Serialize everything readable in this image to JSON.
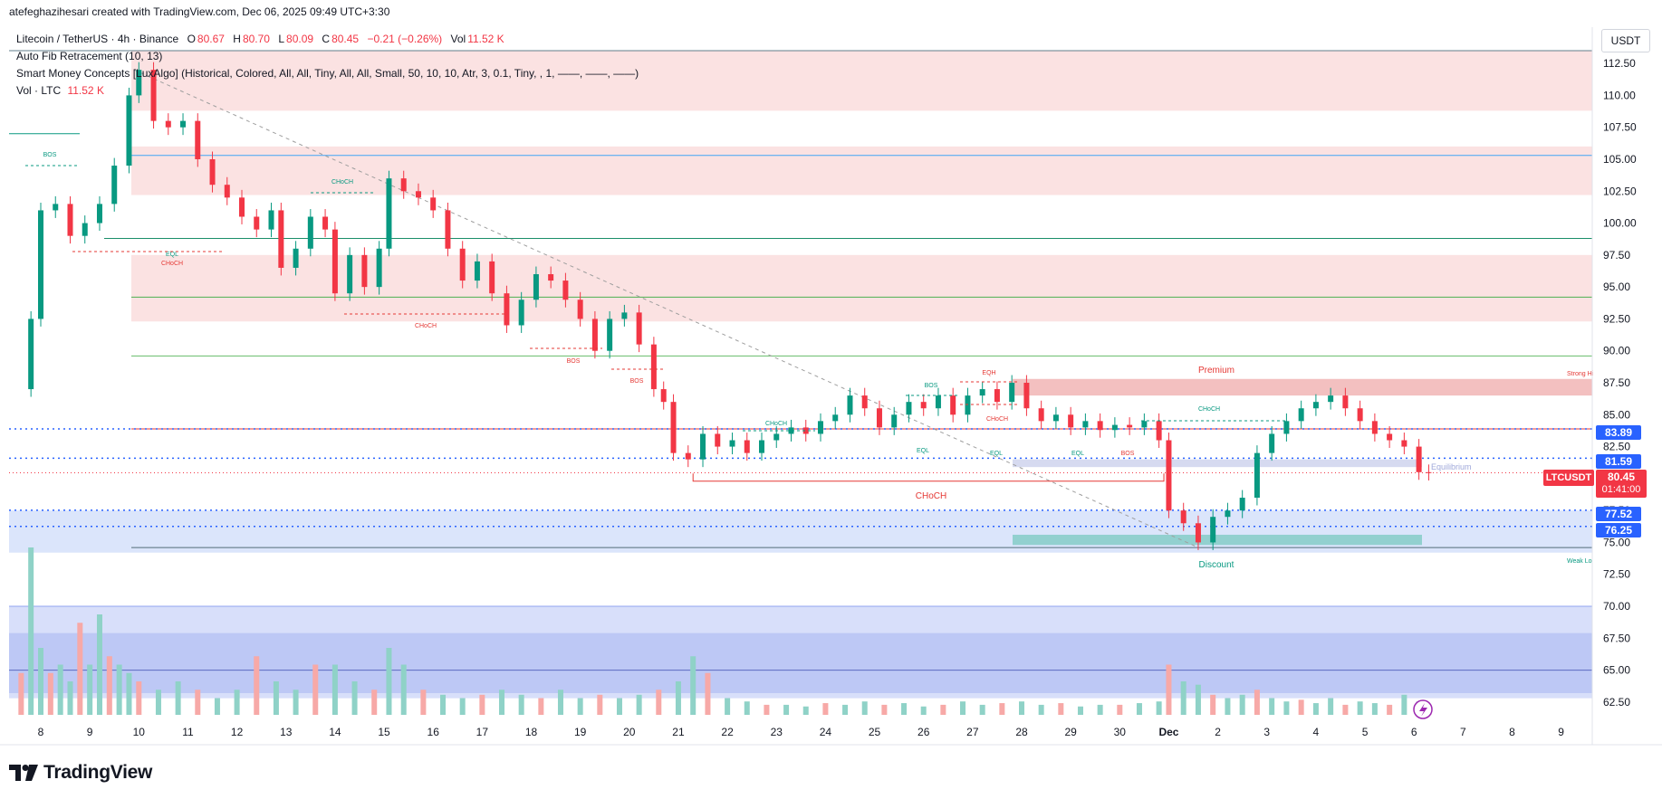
{
  "header": {
    "created_by": "atefeghazihesari created with TradingView.com, Dec 06, 2025 09:49 UTC+3:30"
  },
  "legend": {
    "symbol": "Litecoin / TetherUS · 4h · Binance",
    "o_label": "O",
    "o_value": "80.67",
    "h_label": "H",
    "h_value": "80.70",
    "l_label": "L",
    "l_value": "80.09",
    "c_label": "C",
    "c_value": "80.45",
    "change": "−0.21 (−0.26%)",
    "vol_label": "Vol",
    "vol_value": "11.52 K",
    "indicator_fib": "Auto Fib Retracement (10, 13)",
    "indicator_smc": "Smart Money Concepts [LuxAlgo] (Historical, Colored, All, All, Tiny, All, All, Small, 50, 10, 10, Atr, 3, 0.1, Tiny, , 1, ——, ——, ——)",
    "vol_line_label": "Vol · LTC",
    "vol_line_value": "11.52 K"
  },
  "currency": "USDT",
  "price_tags": {
    "current_symbol": "LTCUSDT",
    "current_price": "80.45",
    "countdown": "01:41:00",
    "tag_83": "83.89",
    "tag_81": "81.59",
    "tag_77": "77.52",
    "tag_76": "76.25"
  },
  "annotations": {
    "premium": "Premium",
    "discount": "Discount",
    "equilibrium": "Equilibrium",
    "strong_high": "Strong Hi",
    "weak_low": "Weak Lo",
    "bos": "BOS",
    "choch": "CHoCH",
    "eqh": "EQH",
    "eql": "EQL"
  },
  "branding": {
    "name": "TradingView"
  },
  "colors": {
    "up": "#089981",
    "down": "#f23645",
    "vol_up": "#8fd2c7",
    "vol_down": "#f7a9a7",
    "premium_zone": "#fbe0e0",
    "discount_zone": "#dbe5fb",
    "fib_blue": "#2962ff"
  },
  "chart_data": {
    "type": "candlestick",
    "timeframe": "4h",
    "y_axis": {
      "ticks": [
        "112.50",
        "110.00",
        "107.50",
        "105.00",
        "102.50",
        "100.00",
        "97.50",
        "95.00",
        "92.50",
        "90.00",
        "87.50",
        "85.00",
        "82.50",
        "80.00",
        "77.50",
        "75.00",
        "72.50",
        "70.00",
        "67.50",
        "65.00",
        "62.50"
      ],
      "range": [
        61.5,
        113.5
      ]
    },
    "x_axis": {
      "ticks": [
        "8",
        "9",
        "10",
        "11",
        "12",
        "13",
        "14",
        "15",
        "16",
        "17",
        "18",
        "19",
        "20",
        "21",
        "22",
        "23",
        "24",
        "25",
        "26",
        "27",
        "28",
        "29",
        "30",
        "Dec",
        "2",
        "3",
        "4",
        "5",
        "6",
        "7",
        "8",
        "9"
      ]
    },
    "price_path": [
      [
        7.6,
        87.0
      ],
      [
        7.8,
        92.5
      ],
      [
        8.0,
        101.0
      ],
      [
        8.3,
        101.5
      ],
      [
        8.6,
        99.0
      ],
      [
        8.9,
        100.0
      ],
      [
        9.2,
        101.5
      ],
      [
        9.5,
        104.5
      ],
      [
        9.8,
        110.0
      ],
      [
        10.0,
        112.0
      ],
      [
        10.3,
        108.0
      ],
      [
        10.6,
        107.5
      ],
      [
        10.9,
        108.0
      ],
      [
        11.2,
        105.0
      ],
      [
        11.5,
        103.0
      ],
      [
        11.8,
        102.0
      ],
      [
        12.1,
        100.5
      ],
      [
        12.4,
        99.5
      ],
      [
        12.7,
        101.0
      ],
      [
        12.9,
        96.5
      ],
      [
        13.2,
        98.0
      ],
      [
        13.5,
        100.5
      ],
      [
        13.8,
        99.5
      ],
      [
        14.0,
        94.5
      ],
      [
        14.3,
        97.5
      ],
      [
        14.6,
        95.0
      ],
      [
        14.9,
        98.0
      ],
      [
        15.1,
        103.5
      ],
      [
        15.4,
        102.5
      ],
      [
        15.7,
        102.0
      ],
      [
        16.0,
        101.0
      ],
      [
        16.3,
        98.0
      ],
      [
        16.6,
        95.5
      ],
      [
        16.9,
        97.0
      ],
      [
        17.2,
        94.5
      ],
      [
        17.5,
        92.0
      ],
      [
        17.8,
        94.0
      ],
      [
        18.1,
        96.0
      ],
      [
        18.4,
        95.5
      ],
      [
        18.7,
        94.0
      ],
      [
        19.0,
        92.5
      ],
      [
        19.3,
        90.0
      ],
      [
        19.6,
        92.5
      ],
      [
        19.9,
        93.0
      ],
      [
        20.2,
        90.5
      ],
      [
        20.5,
        87.0
      ],
      [
        20.7,
        86.0
      ],
      [
        20.9,
        82.0
      ],
      [
        21.2,
        81.5
      ],
      [
        21.5,
        83.5
      ],
      [
        21.8,
        82.5
      ],
      [
        22.1,
        83.0
      ],
      [
        22.4,
        82.0
      ],
      [
        22.7,
        83.0
      ],
      [
        23.0,
        83.5
      ],
      [
        23.3,
        84.0
      ],
      [
        23.6,
        83.5
      ],
      [
        23.9,
        84.5
      ],
      [
        24.2,
        85.0
      ],
      [
        24.5,
        86.5
      ],
      [
        24.8,
        85.5
      ],
      [
        25.1,
        84.0
      ],
      [
        25.4,
        85.0
      ],
      [
        25.7,
        86.0
      ],
      [
        26.0,
        85.5
      ],
      [
        26.3,
        86.5
      ],
      [
        26.6,
        85.0
      ],
      [
        26.9,
        86.5
      ],
      [
        27.2,
        87.0
      ],
      [
        27.5,
        86.0
      ],
      [
        27.8,
        87.5
      ],
      [
        28.1,
        85.5
      ],
      [
        28.4,
        84.5
      ],
      [
        28.7,
        85.0
      ],
      [
        29.0,
        84.0
      ],
      [
        29.3,
        84.5
      ],
      [
        29.6,
        83.8
      ],
      [
        29.9,
        84.2
      ],
      [
        30.2,
        84.0
      ],
      [
        30.5,
        84.5
      ],
      [
        30.8,
        83.0
      ],
      [
        31.0,
        77.5
      ],
      [
        31.3,
        76.5
      ],
      [
        31.6,
        75.0
      ],
      [
        31.9,
        77.0
      ],
      [
        32.2,
        77.5
      ],
      [
        32.5,
        78.5
      ],
      [
        32.8,
        82.0
      ],
      [
        33.1,
        83.5
      ],
      [
        33.4,
        84.5
      ],
      [
        33.7,
        85.5
      ],
      [
        34.0,
        86.0
      ],
      [
        34.3,
        86.5
      ],
      [
        34.6,
        85.5
      ],
      [
        34.9,
        84.5
      ],
      [
        35.2,
        83.5
      ],
      [
        35.5,
        83.0
      ],
      [
        35.8,
        82.5
      ],
      [
        36.1,
        80.5
      ],
      [
        36.3,
        80.45
      ]
    ],
    "volume_path": [
      [
        7.6,
        0.25
      ],
      [
        7.8,
        1.0
      ],
      [
        8.0,
        0.4
      ],
      [
        8.2,
        0.25
      ],
      [
        8.4,
        0.3
      ],
      [
        8.6,
        0.2
      ],
      [
        8.8,
        0.55
      ],
      [
        9.0,
        0.3
      ],
      [
        9.2,
        0.6
      ],
      [
        9.4,
        0.35
      ],
      [
        9.6,
        0.3
      ],
      [
        9.8,
        0.25
      ],
      [
        10.0,
        0.2
      ],
      [
        10.4,
        0.15
      ],
      [
        10.8,
        0.2
      ],
      [
        11.2,
        0.15
      ],
      [
        11.6,
        0.1
      ],
      [
        12.0,
        0.15
      ],
      [
        12.4,
        0.35
      ],
      [
        12.8,
        0.2
      ],
      [
        13.2,
        0.15
      ],
      [
        13.6,
        0.3
      ],
      [
        14.0,
        0.3
      ],
      [
        14.4,
        0.2
      ],
      [
        14.8,
        0.15
      ],
      [
        15.1,
        0.4
      ],
      [
        15.4,
        0.3
      ],
      [
        15.8,
        0.15
      ],
      [
        16.2,
        0.12
      ],
      [
        16.6,
        0.1
      ],
      [
        17.0,
        0.12
      ],
      [
        17.4,
        0.15
      ],
      [
        17.8,
        0.12
      ],
      [
        18.2,
        0.1
      ],
      [
        18.6,
        0.15
      ],
      [
        19.0,
        0.1
      ],
      [
        19.4,
        0.12
      ],
      [
        19.8,
        0.1
      ],
      [
        20.2,
        0.12
      ],
      [
        20.6,
        0.15
      ],
      [
        21.0,
        0.2
      ],
      [
        21.3,
        0.35
      ],
      [
        21.6,
        0.25
      ],
      [
        22.0,
        0.1
      ],
      [
        22.4,
        0.08
      ],
      [
        22.8,
        0.06
      ],
      [
        23.2,
        0.06
      ],
      [
        23.6,
        0.05
      ],
      [
        24.0,
        0.07
      ],
      [
        24.4,
        0.06
      ],
      [
        24.8,
        0.08
      ],
      [
        25.2,
        0.06
      ],
      [
        25.6,
        0.07
      ],
      [
        26.0,
        0.05
      ],
      [
        26.4,
        0.06
      ],
      [
        26.8,
        0.08
      ],
      [
        27.2,
        0.06
      ],
      [
        27.6,
        0.07
      ],
      [
        28.0,
        0.08
      ],
      [
        28.4,
        0.06
      ],
      [
        28.8,
        0.07
      ],
      [
        29.2,
        0.05
      ],
      [
        29.6,
        0.06
      ],
      [
        30.0,
        0.06
      ],
      [
        30.4,
        0.07
      ],
      [
        30.8,
        0.08
      ],
      [
        31.0,
        0.3
      ],
      [
        31.3,
        0.2
      ],
      [
        31.6,
        0.18
      ],
      [
        31.9,
        0.12
      ],
      [
        32.2,
        0.1
      ],
      [
        32.5,
        0.12
      ],
      [
        32.8,
        0.15
      ],
      [
        33.1,
        0.1
      ],
      [
        33.4,
        0.08
      ],
      [
        33.7,
        0.09
      ],
      [
        34.0,
        0.07
      ],
      [
        34.3,
        0.1
      ],
      [
        34.6,
        0.06
      ],
      [
        34.9,
        0.08
      ],
      [
        35.2,
        0.07
      ],
      [
        35.5,
        0.06
      ],
      [
        35.8,
        0.12
      ],
      [
        36.1,
        0.08
      ],
      [
        36.3,
        0.06
      ]
    ],
    "horizontal_levels": {
      "blue_105": 105.3,
      "green_98_8": 98.8,
      "green_94_2": 94.2,
      "green_89_6": 89.6,
      "red_83_89": 83.89,
      "blue_81_59": 81.59,
      "current": 80.45,
      "blue_77_52": 77.52,
      "blue_76_25": 76.25
    },
    "zones": {
      "premium_top": [
        113.5,
        108.8
      ],
      "premium_mid": [
        106.0,
        102.2
      ],
      "premium_low": [
        97.5,
        92.3
      ],
      "strong_high_zone": [
        87.8,
        86.5
      ],
      "discount_zone": [
        77.5,
        74.2
      ],
      "volume_profile": [
        70.0,
        62.8
      ]
    }
  }
}
